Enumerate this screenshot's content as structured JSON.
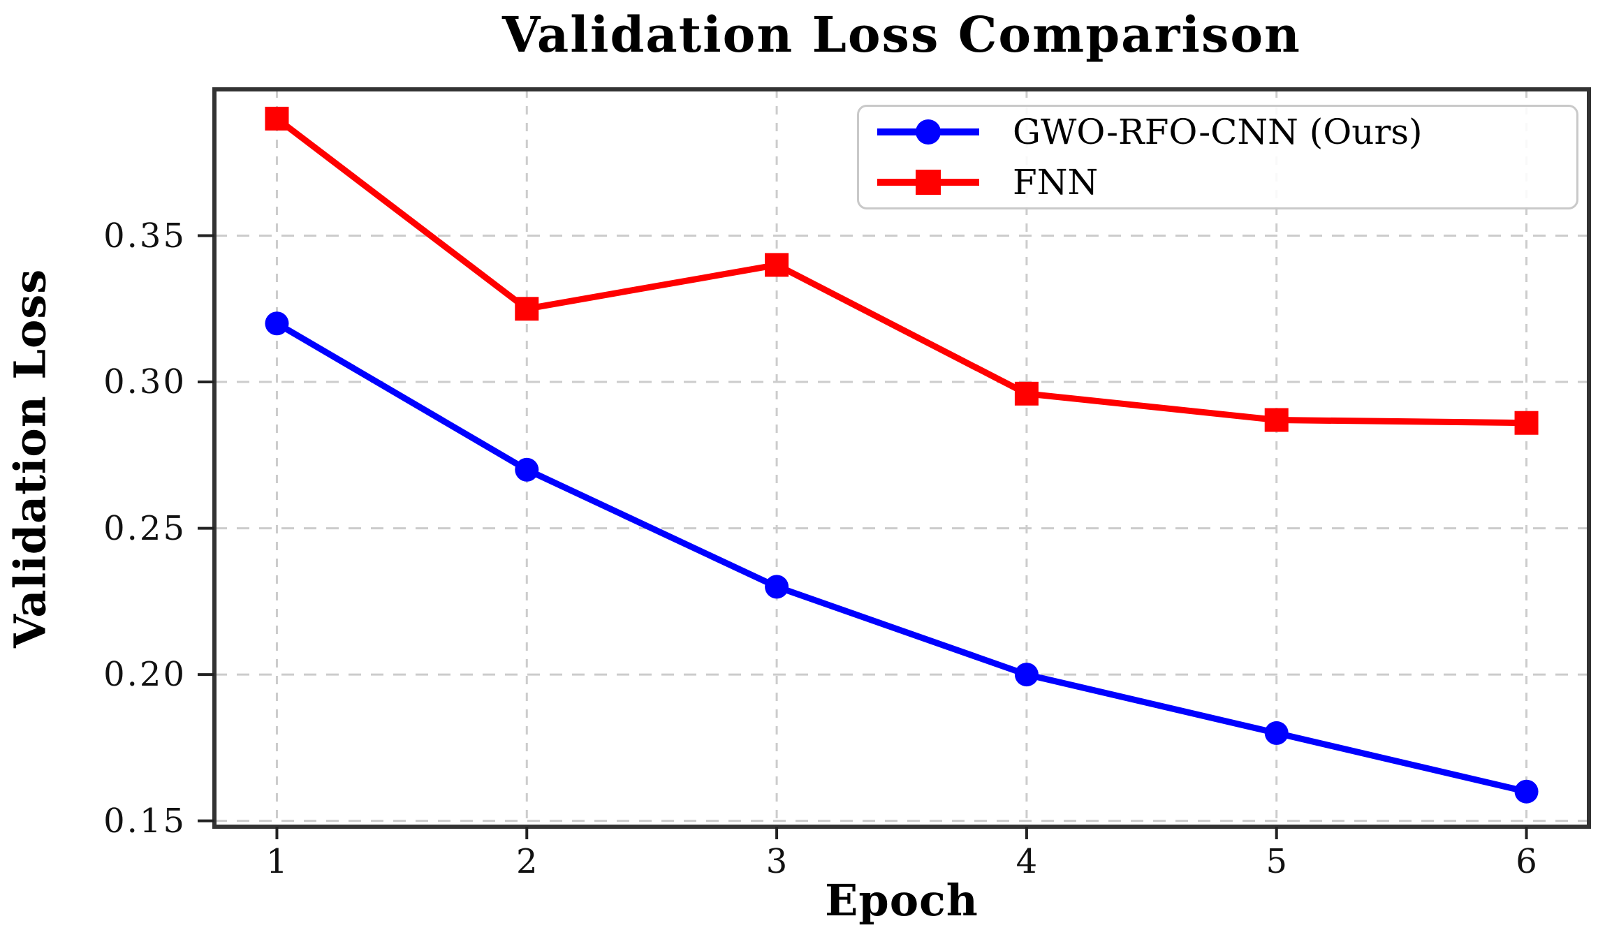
{
  "chart_data": {
    "type": "line",
    "title": "Validation Loss Comparison",
    "xlabel": "Epoch",
    "ylabel": "Validation Loss",
    "x": [
      1,
      2,
      3,
      4,
      5,
      6
    ],
    "xticks": [
      "1",
      "2",
      "3",
      "4",
      "5",
      "6"
    ],
    "yticks": [
      "0.15",
      "0.20",
      "0.25",
      "0.30",
      "0.35"
    ],
    "ytick_values": [
      0.15,
      0.2,
      0.25,
      0.3,
      0.35
    ],
    "xlim": [
      0.75,
      6.25
    ],
    "ylim": [
      0.148,
      0.4
    ],
    "grid": {
      "visible": true,
      "style": "dashed",
      "color": "#cccccc"
    },
    "legend": {
      "position": "upper right"
    },
    "series": [
      {
        "name": "GWO-RFO-CNN (Ours)",
        "color": "#0000ff",
        "marker": "circle",
        "values": [
          0.32,
          0.27,
          0.23,
          0.2,
          0.18,
          0.16
        ]
      },
      {
        "name": "FNN",
        "color": "#ff0000",
        "marker": "square",
        "values": [
          0.39,
          0.325,
          0.34,
          0.296,
          0.287,
          0.286
        ]
      }
    ],
    "colors": {
      "axis": "#333333",
      "tick": "#222222",
      "grid": "#cccccc"
    }
  }
}
